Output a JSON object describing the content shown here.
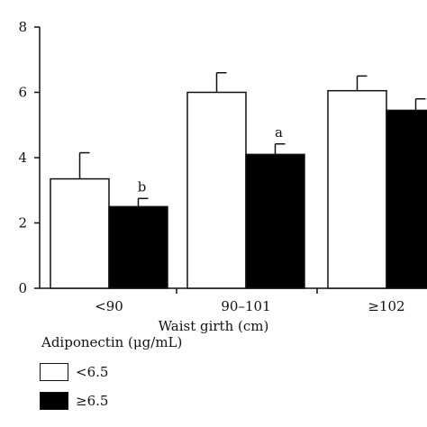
{
  "chart_data": {
    "type": "bar",
    "categories": [
      "<90",
      "90–101",
      "≥102"
    ],
    "series": [
      {
        "name": "<6.5",
        "values": [
          3.35,
          6.0,
          6.05
        ],
        "errors": [
          0.8,
          0.6,
          0.45
        ],
        "color": "#ffffff"
      },
      {
        "name": "≥6.5",
        "values": [
          2.5,
          4.1,
          5.45
        ],
        "errors": [
          0.25,
          0.32,
          0.35
        ],
        "color": "#000000"
      }
    ],
    "annotations": [
      {
        "category": "<90",
        "series": "≥6.5",
        "text": "b"
      },
      {
        "category": "90–101",
        "series": "≥6.5",
        "text": "a"
      }
    ],
    "yticks": [
      "0",
      "2",
      "4",
      "6",
      "8"
    ],
    "ylim": [
      0,
      8
    ],
    "xlabel": "Waist girth (cm)",
    "ylabel": "",
    "legend_title": "Adiponectin (μg/mL)",
    "legend_position": "bottom-left",
    "grid": false
  }
}
